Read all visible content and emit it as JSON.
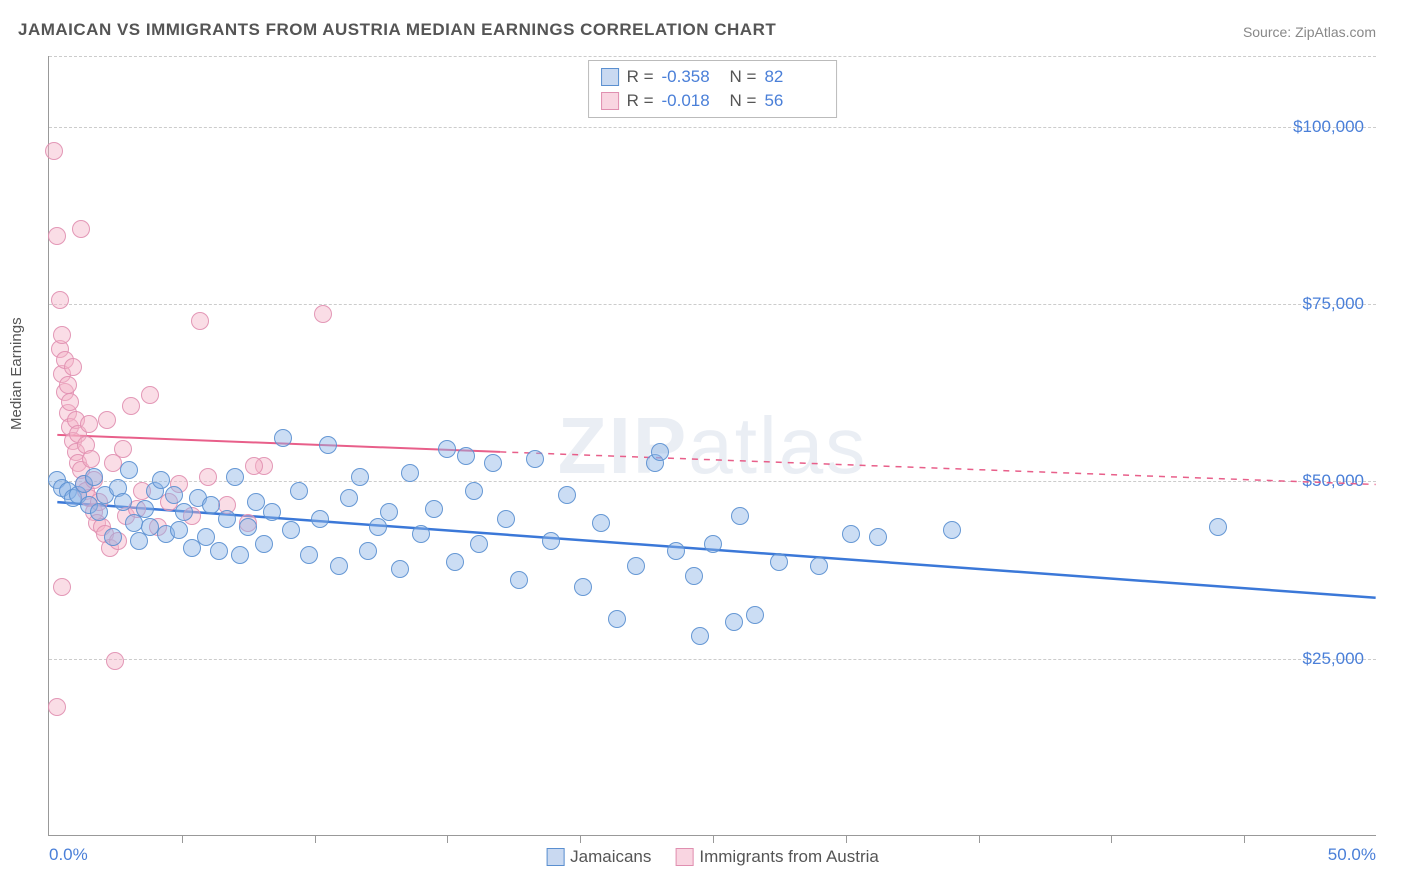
{
  "title": "JAMAICAN VS IMMIGRANTS FROM AUSTRIA MEDIAN EARNINGS CORRELATION CHART",
  "source_label": "Source: ZipAtlas.com",
  "ylabel": "Median Earnings",
  "watermark_bold": "ZIP",
  "watermark_rest": "atlas",
  "chart": {
    "type": "scatter",
    "x_min": 0,
    "x_max": 50,
    "y_min": 0,
    "y_max": 110000,
    "x_left_label": "0.0%",
    "x_right_label": "50.0%",
    "y_ticks": [
      {
        "value": 25000,
        "label": "$25,000"
      },
      {
        "value": 50000,
        "label": "$50,000"
      },
      {
        "value": 75000,
        "label": "$75,000"
      },
      {
        "value": 100000,
        "label": "$100,000"
      }
    ],
    "x_tick_positions": [
      5,
      10,
      15,
      20,
      25,
      30,
      35,
      40,
      45
    ],
    "grid_color": "#cccccc",
    "axis_color": "#999999",
    "background_color": "#ffffff",
    "marker_radius": 9,
    "stats": [
      {
        "color": "blue",
        "R": "-0.358",
        "N": "82"
      },
      {
        "color": "pink",
        "R": "-0.018",
        "N": "56"
      }
    ],
    "legend": [
      {
        "color": "blue",
        "label": "Jamaicans"
      },
      {
        "color": "pink",
        "label": "Immigrants from Austria"
      }
    ],
    "trend_lines": {
      "blue": {
        "x1": 0.3,
        "y1": 47000,
        "x2": 50,
        "y2": 33500,
        "color": "#3b78d8",
        "width": 2.5,
        "dash_after_x": null
      },
      "pink": {
        "x1": 0.3,
        "y1": 56500,
        "x2": 50,
        "y2": 49500,
        "color": "#e85f8a",
        "width": 2,
        "solid_until_x": 17,
        "solid_until_y": 54100
      }
    },
    "series": {
      "blue": [
        [
          0.3,
          50000
        ],
        [
          0.5,
          49000
        ],
        [
          0.7,
          48500
        ],
        [
          0.9,
          47500
        ],
        [
          1.1,
          48000
        ],
        [
          1.3,
          49500
        ],
        [
          1.5,
          46500
        ],
        [
          1.7,
          50500
        ],
        [
          1.9,
          45500
        ],
        [
          2.1,
          48000
        ],
        [
          2.4,
          42000
        ],
        [
          2.6,
          49000
        ],
        [
          2.8,
          47000
        ],
        [
          3.0,
          51500
        ],
        [
          3.2,
          44000
        ],
        [
          3.4,
          41500
        ],
        [
          3.6,
          46000
        ],
        [
          3.8,
          43500
        ],
        [
          4.0,
          48500
        ],
        [
          4.2,
          50000
        ],
        [
          4.4,
          42500
        ],
        [
          4.7,
          48000
        ],
        [
          4.9,
          43000
        ],
        [
          5.1,
          45500
        ],
        [
          5.4,
          40500
        ],
        [
          5.6,
          47500
        ],
        [
          5.9,
          42000
        ],
        [
          6.1,
          46500
        ],
        [
          6.4,
          40000
        ],
        [
          6.7,
          44500
        ],
        [
          7.0,
          50500
        ],
        [
          7.2,
          39500
        ],
        [
          7.5,
          43500
        ],
        [
          7.8,
          47000
        ],
        [
          8.1,
          41000
        ],
        [
          8.4,
          45500
        ],
        [
          8.8,
          56000
        ],
        [
          9.1,
          43000
        ],
        [
          9.4,
          48500
        ],
        [
          9.8,
          39500
        ],
        [
          10.2,
          44500
        ],
        [
          10.5,
          55000
        ],
        [
          10.9,
          38000
        ],
        [
          11.3,
          47500
        ],
        [
          11.7,
          50500
        ],
        [
          12.0,
          40000
        ],
        [
          12.4,
          43500
        ],
        [
          12.8,
          45500
        ],
        [
          13.2,
          37500
        ],
        [
          13.6,
          51000
        ],
        [
          14.0,
          42500
        ],
        [
          14.5,
          46000
        ],
        [
          15.0,
          54500
        ],
        [
          15.3,
          38500
        ],
        [
          15.7,
          53500
        ],
        [
          16.2,
          41000
        ],
        [
          16.7,
          52500
        ],
        [
          17.2,
          44500
        ],
        [
          17.7,
          36000
        ],
        [
          18.3,
          53000
        ],
        [
          18.9,
          41500
        ],
        [
          19.5,
          48000
        ],
        [
          20.1,
          35000
        ],
        [
          20.8,
          44000
        ],
        [
          21.4,
          30500
        ],
        [
          22.1,
          38000
        ],
        [
          22.8,
          52500
        ],
        [
          23.6,
          40000
        ],
        [
          24.3,
          36500
        ],
        [
          25.0,
          41000
        ],
        [
          25.8,
          30000
        ],
        [
          26.6,
          31000
        ],
        [
          27.5,
          38500
        ],
        [
          23.0,
          54000
        ],
        [
          30.2,
          42500
        ],
        [
          31.2,
          42000
        ],
        [
          29.0,
          38000
        ],
        [
          24.5,
          28000
        ],
        [
          26.0,
          45000
        ],
        [
          34.0,
          43000
        ],
        [
          44.0,
          43500
        ],
        [
          16.0,
          48500
        ]
      ],
      "pink": [
        [
          0.2,
          96500
        ],
        [
          0.3,
          84500
        ],
        [
          0.4,
          75500
        ],
        [
          0.3,
          18000
        ],
        [
          0.4,
          68500
        ],
        [
          0.5,
          70500
        ],
        [
          0.5,
          65000
        ],
        [
          0.6,
          62500
        ],
        [
          0.6,
          67000
        ],
        [
          0.7,
          59500
        ],
        [
          0.7,
          63500
        ],
        [
          0.8,
          57500
        ],
        [
          0.8,
          61000
        ],
        [
          0.9,
          66000
        ],
        [
          0.9,
          55500
        ],
        [
          1.0,
          58500
        ],
        [
          1.0,
          54000
        ],
        [
          1.1,
          52500
        ],
        [
          1.1,
          56500
        ],
        [
          1.2,
          51500
        ],
        [
          1.2,
          85500
        ],
        [
          1.3,
          49500
        ],
        [
          1.4,
          55000
        ],
        [
          1.4,
          48500
        ],
        [
          1.5,
          58000
        ],
        [
          1.5,
          47500
        ],
        [
          1.6,
          53000
        ],
        [
          1.7,
          45500
        ],
        [
          1.7,
          50000
        ],
        [
          1.8,
          44000
        ],
        [
          1.9,
          47000
        ],
        [
          2.0,
          43500
        ],
        [
          2.1,
          42500
        ],
        [
          2.2,
          58500
        ],
        [
          2.3,
          40500
        ],
        [
          2.4,
          52500
        ],
        [
          2.6,
          41500
        ],
        [
          2.8,
          54500
        ],
        [
          2.9,
          45000
        ],
        [
          2.5,
          24500
        ],
        [
          3.1,
          60500
        ],
        [
          3.3,
          46000
        ],
        [
          3.5,
          48500
        ],
        [
          3.8,
          62000
        ],
        [
          4.1,
          43500
        ],
        [
          4.5,
          47000
        ],
        [
          4.9,
          49500
        ],
        [
          5.4,
          45000
        ],
        [
          5.7,
          72500
        ],
        [
          6.0,
          50500
        ],
        [
          6.7,
          46500
        ],
        [
          7.5,
          44000
        ],
        [
          8.1,
          52000
        ],
        [
          7.7,
          52000
        ],
        [
          10.3,
          73500
        ],
        [
          0.5,
          35000
        ]
      ]
    }
  }
}
